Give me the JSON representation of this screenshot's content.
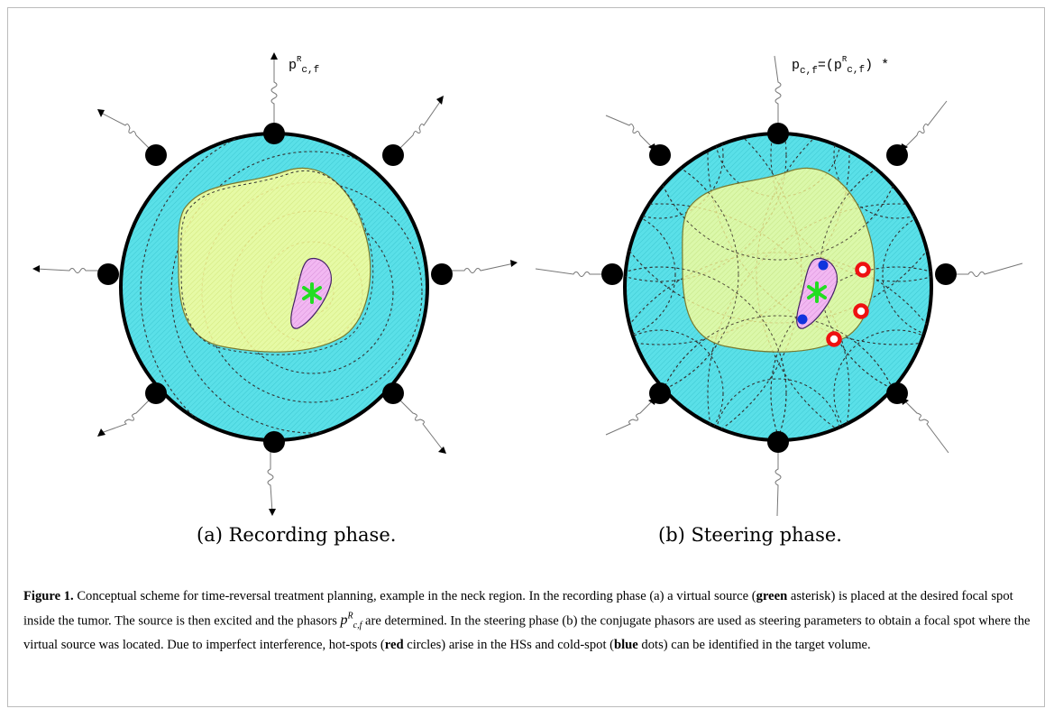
{
  "panels": {
    "a": {
      "caption": "(a) Recording phase.",
      "annotation": {
        "base": "p",
        "sup": "R",
        "sub": "c,f"
      }
    },
    "b": {
      "caption": "(b) Steering phase.",
      "annotation": {
        "lhs_base": "p",
        "lhs_sub": "c,f",
        "eq": "=(",
        "base": "p",
        "sup": "R",
        "sub": "c,f",
        "close": ") *"
      }
    }
  },
  "caption": {
    "label": "Figure 1.",
    "s1": "Conceptual scheme for time-reversal treatment planning, example in the neck region. In the recording phase (a) a virtual source (",
    "green": "green",
    "s2": " asterisk) is placed at the desired focal spot inside the tumor. The source is then excited and the phasors ",
    "phasor": {
      "base": "p",
      "sup": "R",
      "sub": "c,f"
    },
    "s3": " are determined. In the steering phase (b) the conjugate phasors are used as steering parameters to obtain a focal spot where the virtual source was located. Due to imperfect interference, hot-spots (",
    "red": "red",
    "s4": " circles) arise in the HSs and cold-spot (",
    "blue": "blue",
    "s5": " dots) can be identified in the target volume."
  },
  "colors": {
    "neck": "#5ae0e8",
    "tumor": "#ffff99",
    "target": "#f2b8f2",
    "source": "#22dd22",
    "hot_spot": "#ee1111",
    "cold_spot": "#1133dd"
  },
  "icons": [
    "antenna-dot",
    "wavy-arrow",
    "asterisk-source"
  ]
}
